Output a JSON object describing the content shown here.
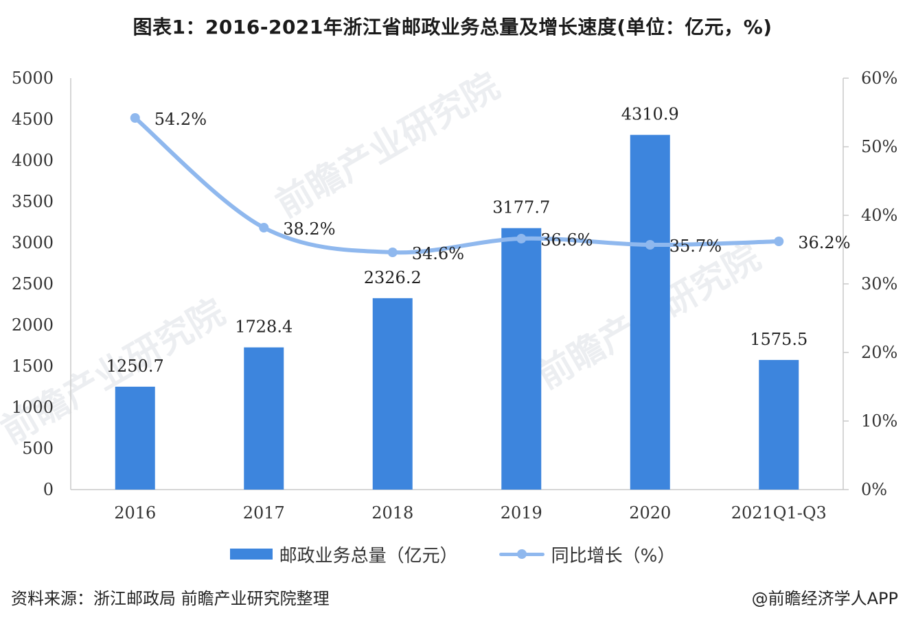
{
  "title": "图表1：2016-2021年浙江省邮政业务总量及增长速度(单位：亿元，%)",
  "watermark": "前瞻产业研究院",
  "footer": {
    "source": "资料来源：浙江邮政局 前瞻产业研究院整理",
    "credit": "@前瞻经济学人APP"
  },
  "colors": {
    "bar": "#3d85dd",
    "line": "#8fb8ee",
    "axis": "#c8c8c8"
  },
  "chart_data": {
    "type": "bar",
    "categories": [
      "2016",
      "2017",
      "2018",
      "2019",
      "2020",
      "2021Q1-Q3"
    ],
    "series": [
      {
        "name": "邮政业务总量（亿元）",
        "type": "bar",
        "axis": "left",
        "values": [
          1250.7,
          1728.4,
          2326.2,
          3177.7,
          4310.9,
          1575.5
        ],
        "labels": [
          "1250.7",
          "1728.4",
          "2326.2",
          "3177.7",
          "4310.9",
          "1575.5"
        ]
      },
      {
        "name": "同比增长（%）",
        "type": "line",
        "axis": "right",
        "values": [
          54.2,
          38.2,
          34.6,
          36.6,
          35.7,
          36.2
        ],
        "labels": [
          "54.2%",
          "38.2%",
          "34.6%",
          "36.6%",
          "35.7%",
          "36.2%"
        ]
      }
    ],
    "y_left": {
      "range": [
        0,
        5000
      ],
      "ticks": [
        0,
        500,
        1000,
        1500,
        2000,
        2500,
        3000,
        3500,
        4000,
        4500,
        5000
      ],
      "tick_labels": [
        "0",
        "500",
        "1000",
        "1500",
        "2000",
        "2500",
        "3000",
        "3500",
        "4000",
        "4500",
        "5000"
      ]
    },
    "y_right": {
      "range": [
        0,
        60
      ],
      "ticks": [
        0,
        10,
        20,
        30,
        40,
        50,
        60
      ],
      "tick_labels": [
        "0%",
        "10%",
        "20%",
        "30%",
        "40%",
        "50%",
        "60%"
      ]
    },
    "grid": false,
    "legend_position": "bottom"
  }
}
